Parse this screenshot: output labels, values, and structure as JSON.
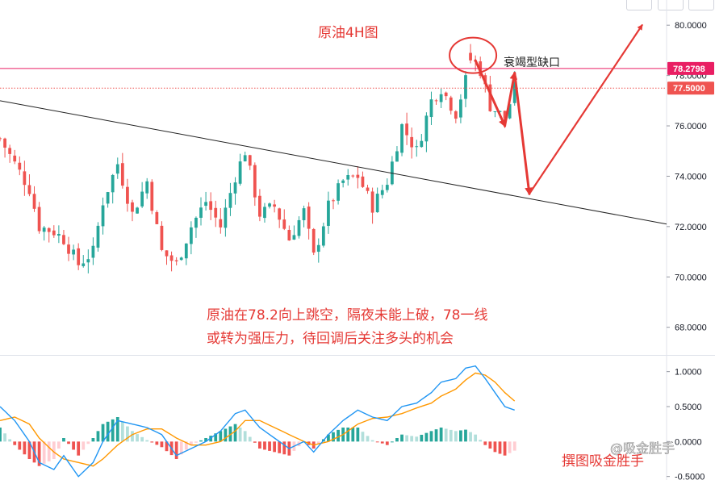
{
  "chart_data": [
    {
      "type": "candlestick",
      "title": "原油4H图",
      "price_axis": {
        "range": [
          66.9,
          81.0
        ],
        "ticks": [
          "80.0000",
          "78.0000",
          "76.0000",
          "74.0000",
          "72.0000",
          "70.0000",
          "68.0000"
        ]
      },
      "price_lines": [
        {
          "label": "78.2798",
          "value": 78.2798,
          "color": "#e91e63",
          "style": "solid"
        },
        {
          "label": "77.5000",
          "value": 77.5,
          "color": "#ef5350",
          "style": "dotted"
        }
      ],
      "trendline": {
        "from": [
          0,
          77.0
        ],
        "to": [
          136,
          72.1
        ],
        "color": "#222222"
      },
      "annotations": [
        {
          "text": "衰竭型缺口",
          "target": "gap circle near 78.8"
        },
        {
          "text": "原油在78.2向上跳空，隔夜未能上破，78一线"
        },
        {
          "text": "或转为强压力，待回调后关注多头的机会"
        }
      ],
      "projection_path": [
        [
          97,
          78.6
        ],
        [
          103,
          76.0
        ],
        [
          105,
          78.1
        ],
        [
          108,
          73.3
        ],
        [
          131,
          80.0
        ]
      ],
      "bullish_color": "#26a69a",
      "bearish_color": "#ef5350",
      "candles_close_path": [
        [
          0,
          75.5
        ],
        [
          3,
          74.5
        ],
        [
          6,
          73.5
        ],
        [
          8,
          72.0
        ],
        [
          11,
          71.8
        ],
        [
          13,
          71.5
        ],
        [
          16,
          70.5
        ],
        [
          19,
          71.0
        ],
        [
          21,
          73.0
        ],
        [
          24,
          74.5
        ],
        [
          27,
          72.5
        ],
        [
          30,
          73.8
        ],
        [
          33,
          71.0
        ],
        [
          36,
          70.5
        ],
        [
          39,
          72.0
        ],
        [
          42,
          73.0
        ],
        [
          45,
          72.0
        ],
        [
          48,
          74.0
        ],
        [
          50,
          75.0
        ],
        [
          53,
          72.5
        ],
        [
          56,
          72.8
        ],
        [
          59,
          71.5
        ],
        [
          62,
          72.6
        ],
        [
          64,
          70.8
        ],
        [
          67,
          72.8
        ],
        [
          70,
          73.8
        ],
        [
          73,
          74.0
        ],
        [
          76,
          72.8
        ],
        [
          79,
          73.8
        ],
        [
          82,
          76.0
        ],
        [
          85,
          75.0
        ],
        [
          88,
          77.0
        ],
        [
          90,
          77.5
        ],
        [
          93,
          76.5
        ],
        [
          95,
          77.8
        ],
        [
          96,
          78.8
        ],
        [
          98,
          78.2
        ],
        [
          100,
          76.8
        ],
        [
          103,
          76.3
        ],
        [
          105,
          77.5
        ]
      ]
    },
    {
      "type": "macd",
      "axis": {
        "range": [
          -0.55,
          1.1
        ],
        "ticks": [
          "1.0000",
          "0.5000",
          "0.0000",
          "-0.5000"
        ]
      },
      "macd_color": "#2196f3",
      "signal_color": "#ff9800",
      "macd_path": [
        [
          0,
          0.5
        ],
        [
          3,
          0.3
        ],
        [
          6,
          0.0
        ],
        [
          8,
          -0.3
        ],
        [
          11,
          -0.4
        ],
        [
          13,
          -0.2
        ],
        [
          16,
          -0.5
        ],
        [
          19,
          -0.3
        ],
        [
          21,
          0.0
        ],
        [
          24,
          0.3
        ],
        [
          27,
          0.25
        ],
        [
          30,
          0.2
        ],
        [
          33,
          0.1
        ],
        [
          36,
          -0.2
        ],
        [
          39,
          -0.1
        ],
        [
          42,
          0.0
        ],
        [
          45,
          0.15
        ],
        [
          48,
          0.4
        ],
        [
          50,
          0.45
        ],
        [
          53,
          0.2
        ],
        [
          56,
          0.05
        ],
        [
          59,
          -0.1
        ],
        [
          62,
          0.0
        ],
        [
          64,
          -0.15
        ],
        [
          67,
          0.1
        ],
        [
          70,
          0.3
        ],
        [
          73,
          0.45
        ],
        [
          76,
          0.35
        ],
        [
          79,
          0.3
        ],
        [
          82,
          0.5
        ],
        [
          85,
          0.55
        ],
        [
          88,
          0.7
        ],
        [
          90,
          0.85
        ],
        [
          93,
          0.9
        ],
        [
          95,
          1.05
        ],
        [
          97,
          1.08
        ],
        [
          99,
          0.9
        ],
        [
          101,
          0.7
        ],
        [
          103,
          0.5
        ],
        [
          105,
          0.45
        ]
      ],
      "signal_path": [
        [
          0,
          0.3
        ],
        [
          3,
          0.35
        ],
        [
          6,
          0.25
        ],
        [
          8,
          0.05
        ],
        [
          11,
          -0.15
        ],
        [
          13,
          -0.25
        ],
        [
          16,
          -0.3
        ],
        [
          19,
          -0.35
        ],
        [
          21,
          -0.25
        ],
        [
          24,
          -0.05
        ],
        [
          27,
          0.1
        ],
        [
          30,
          0.18
        ],
        [
          33,
          0.18
        ],
        [
          36,
          0.05
        ],
        [
          39,
          -0.05
        ],
        [
          42,
          -0.05
        ],
        [
          45,
          0.0
        ],
        [
          48,
          0.15
        ],
        [
          50,
          0.3
        ],
        [
          53,
          0.3
        ],
        [
          56,
          0.2
        ],
        [
          59,
          0.1
        ],
        [
          62,
          0.0
        ],
        [
          64,
          -0.05
        ],
        [
          67,
          0.0
        ],
        [
          70,
          0.1
        ],
        [
          73,
          0.25
        ],
        [
          76,
          0.33
        ],
        [
          79,
          0.35
        ],
        [
          82,
          0.4
        ],
        [
          85,
          0.48
        ],
        [
          88,
          0.55
        ],
        [
          90,
          0.65
        ],
        [
          93,
          0.75
        ],
        [
          95,
          0.88
        ],
        [
          97,
          0.98
        ],
        [
          99,
          0.95
        ],
        [
          101,
          0.85
        ],
        [
          103,
          0.7
        ],
        [
          105,
          0.58
        ]
      ]
    }
  ],
  "watermarks": {
    "platform": "@吸金胜手",
    "author": "撰图吸金胜手"
  }
}
